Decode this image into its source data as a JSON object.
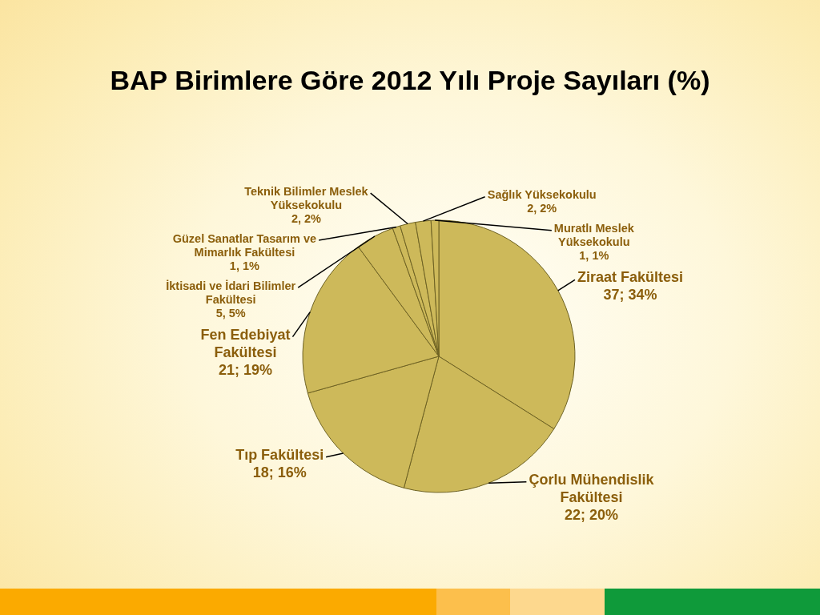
{
  "chart_data": {
    "type": "pie",
    "title": "BAP Birimlere Göre 2012 Yılı Proje Sayıları (%)",
    "categories": [
      "Ziraat Fakültesi",
      "Çorlu Mühendislik Fakültesi",
      "Tıp Fakültesi",
      "Fen Edebiyat Fakültesi",
      "İktisadi ve İdari Bilimler Fakültesi",
      "Güzel Sanatlar Tasarım ve Mimarlık Fakültesi",
      "Teknik Bilimler Meslek Yüksekokulu",
      "Sağlık Yüksekokulu",
      "Muratlı Meslek Yüksekokulu"
    ],
    "values": [
      37,
      22,
      18,
      21,
      5,
      1,
      2,
      2,
      1
    ],
    "colors": [
      "#cdb95a",
      "#cdb95a",
      "#cdb95a",
      "#cdb95a",
      "#cdb95a",
      "#cdb95a",
      "#cdb95a",
      "#cdb95a",
      "#cdb95a"
    ],
    "value_labels": [
      "37; 34%",
      "22; 20%",
      "18; 16%",
      "21; 19%",
      "5, 5%",
      "1, 1%",
      "2, 2%",
      "2, 2%",
      "1, 1%"
    ]
  }
}
